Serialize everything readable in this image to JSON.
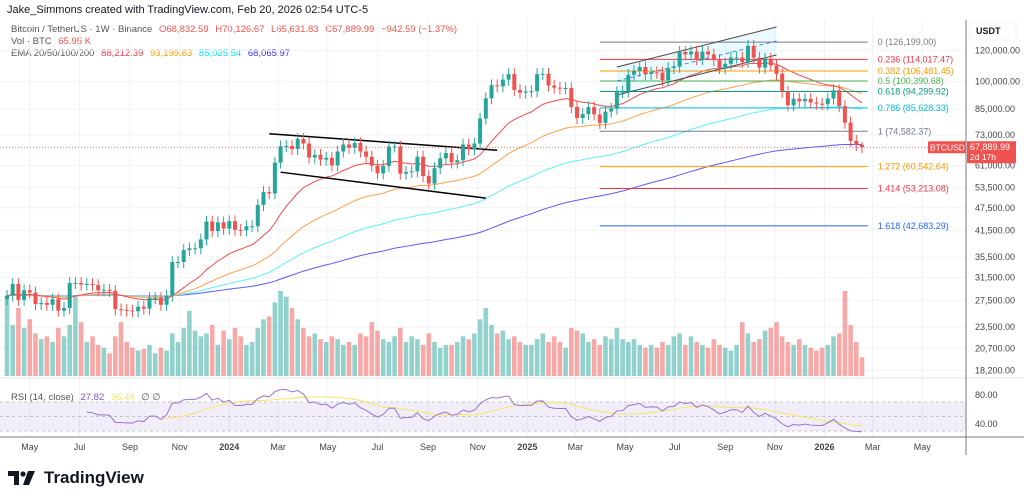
{
  "credit": "Jake_Simmons created with TradingView.com, Feb 20, 2026 02:54 UTC-5",
  "legend": {
    "symbol": "Bitcoin / TetherUS · 1W · Binance",
    "open": "O68,832.59",
    "high": "H70,126.67",
    "low": "L65,631.83",
    "close": "C67,889.99",
    "change": "−942.59 (−1.37%)",
    "vol_label": "Vol · BTC",
    "vol_value": "65.95 K",
    "ema_label": "EMA 20/50/100/200",
    "ema_values": [
      "88,212.39",
      "93,199.83",
      "85,025.54",
      "68,065.97"
    ],
    "rsi_label": "RSI (14, close)",
    "rsi_value": "27.82",
    "rsi_ma_value": "36.44",
    "rsi_extra": "∅ ∅"
  },
  "colors": {
    "up": "#26a69a",
    "down": "#ef5350",
    "ema20": "#f44a4a",
    "ema50": "#ffa04d",
    "ema100": "#5ef0fa",
    "ema200": "#5c5cf5",
    "rsi": "#9575cd",
    "rsi_ma": "#f5e663"
  },
  "price_axis": {
    "unit": "USDT",
    "ticks": [
      "120,000.00",
      "100,000.00",
      "85,000.00",
      "73,000.00",
      "61,000.00",
      "53,500.00",
      "47,500.00",
      "41,500.00",
      "35,500.00",
      "31,500.00",
      "27,500.00",
      "23,500.00",
      "20,700.00",
      "18,200.00"
    ]
  },
  "rsi_axis": {
    "ticks": [
      "80.00",
      "40.00"
    ]
  },
  "time_axis": [
    {
      "label": "May",
      "date": "2023-05-01",
      "bold": false
    },
    {
      "label": "Jul",
      "date": "2023-07-01",
      "bold": false
    },
    {
      "label": "Sep",
      "date": "2023-09-01",
      "bold": false
    },
    {
      "label": "Nov",
      "date": "2023-11-01",
      "bold": false
    },
    {
      "label": "2024",
      "date": "2024-01-01",
      "bold": true
    },
    {
      "label": "Mar",
      "date": "2024-03-01",
      "bold": false
    },
    {
      "label": "May",
      "date": "2024-05-01",
      "bold": false
    },
    {
      "label": "Jul",
      "date": "2024-07-01",
      "bold": false
    },
    {
      "label": "Sep",
      "date": "2024-09-01",
      "bold": false
    },
    {
      "label": "Nov",
      "date": "2024-11-01",
      "bold": false
    },
    {
      "label": "2025",
      "date": "2025-01-01",
      "bold": true
    },
    {
      "label": "Mar",
      "date": "2025-03-01",
      "bold": false
    },
    {
      "label": "May",
      "date": "2025-05-01",
      "bold": false
    },
    {
      "label": "Jul",
      "date": "2025-07-01",
      "bold": false
    },
    {
      "label": "Sep",
      "date": "2025-09-01",
      "bold": false
    },
    {
      "label": "Nov",
      "date": "2025-11-01",
      "bold": false
    },
    {
      "label": "2026",
      "date": "2026-01-01",
      "bold": true
    },
    {
      "label": "Mar",
      "date": "2026-03-01",
      "bold": false
    },
    {
      "label": "May",
      "date": "2026-05-01",
      "bold": false
    }
  ],
  "current_price": {
    "symbol": "BTCUSDT",
    "price": "67,889.99",
    "countdown": "2d 17h",
    "value": 67889.99
  },
  "fib_levels": [
    {
      "label": "0 (126,199.00)",
      "price": 126199.0,
      "color": "#787b86"
    },
    {
      "label": "0.236 (114,017.47)",
      "price": 114017.47,
      "color": "#f23645"
    },
    {
      "label": "0.382 (106,481.45)",
      "price": 106481.45,
      "color": "#ff9800"
    },
    {
      "label": "0.5 (100,390.68)",
      "price": 100390.68,
      "color": "#4caf50"
    },
    {
      "label": "0.618 (94,299.92)",
      "price": 94299.92,
      "color": "#089981"
    },
    {
      "label": "0.786 (85,628.33)",
      "price": 85628.33,
      "color": "#00bcd4"
    },
    {
      "label": "1 (74,582.37)",
      "price": 74582.37,
      "color": "#787b86"
    },
    {
      "label": "1.272 (60,542.64)",
      "price": 60542.64,
      "color": "#ff9800"
    },
    {
      "label": "1.414 (53,213.08)",
      "price": 53213.08,
      "color": "#f23645"
    },
    {
      "label": "1.618 (42,683.29)",
      "price": 42683.29,
      "color": "#2962ff"
    }
  ],
  "fib_range": {
    "from": "2025-03-31",
    "to": "2026-02-23"
  },
  "trendlines": {
    "descending_upper": [
      [
        "2024-02-19",
        73500
      ],
      [
        "2024-11-25",
        66700
      ]
    ],
    "descending_lower": [
      [
        "2024-03-04",
        58600
      ],
      [
        "2024-11-11",
        50300
      ]
    ],
    "rising_upper": [
      [
        "2025-04-21",
        109000
      ],
      [
        "2025-11-03",
        138000
      ]
    ],
    "rising_lower": [
      [
        "2025-04-21",
        92400
      ],
      [
        "2025-11-03",
        117000
      ]
    ]
  },
  "brand": "TradingView",
  "chart_data": {
    "type": "candlestick",
    "interval": "1W",
    "first_week": "2023-04-03",
    "scale": "log",
    "last_candle": {
      "open": 68832.59,
      "high": 70126.67,
      "low": 65631.83,
      "close": 67889.99
    },
    "closes_k": [
      28.3,
      30.3,
      27.6,
      29.2,
      28.8,
      26.9,
      27.1,
      26.8,
      27.7,
      25.9,
      26.3,
      30.5,
      30.5,
      30.2,
      30.3,
      30.1,
      29.2,
      29.3,
      29.1,
      26.1,
      26.0,
      25.9,
      25.8,
      26.5,
      26.2,
      27.9,
      27.9,
      26.8,
      28.3,
      34.5,
      34.5,
      37.0,
      37.4,
      37.4,
      39.4,
      43.8,
      41.4,
      43.6,
      42.0,
      43.9,
      41.7,
      41.6,
      42.6,
      42.6,
      48.3,
      52.1,
      51.7,
      62.0,
      68.3,
      68.4,
      67.2,
      71.3,
      69.4,
      63.9,
      64.9,
      63.1,
      63.8,
      61.0,
      66.2,
      69.0,
      67.7,
      69.6,
      66.2,
      64.2,
      60.9,
      58.2,
      60.8,
      68.2,
      68.2,
      58.1,
      58.7,
      58.9,
      64.2,
      57.3,
      54.8,
      60.0,
      63.6,
      65.6,
      62.1,
      62.9,
      69.0,
      67.0,
      69.4,
      80.4,
      90.6,
      97.9,
      97.3,
      101.2,
      104.5,
      95.2,
      93.7,
      94.3,
      94.5,
      104.5,
      104.7,
      97.7,
      96.5,
      96.1,
      96.3,
      86.1,
      80.7,
      82.6,
      86.0,
      82.4,
      78.4,
      83.8,
      85.2,
      94.0,
      94.3,
      104.1,
      106.5,
      109.0,
      104.6,
      105.6,
      105.4,
      100.9,
      108.4,
      109.2,
      119.1,
      117.4,
      119.4,
      114.2,
      119.3,
      117.4,
      113.5,
      108.3,
      111.1,
      115.3,
      115.3,
      112.2,
      123.5,
      115.2,
      108.6,
      114.5,
      110.0,
      104.7,
      94.2,
      87.0,
      90.4,
      89.0,
      90.3,
      88.4,
      87.8,
      87.5,
      90.5,
      95.0,
      86.5,
      78.5,
      70.5,
      68.8,
      67.89
    ],
    "volumes_k": [
      280,
      180,
      240,
      170,
      200,
      150,
      130,
      140,
      120,
      170,
      140,
      180,
      280,
      190,
      120,
      140,
      110,
      100,
      80,
      140,
      190,
      120,
      100,
      90,
      95,
      110,
      80,
      100,
      90,
      150,
      120,
      170,
      230,
      160,
      140,
      150,
      180,
      110,
      160,
      130,
      170,
      140,
      110,
      120,
      170,
      200,
      210,
      260,
      300,
      280,
      240,
      200,
      170,
      140,
      150,
      130,
      120,
      140,
      130,
      110,
      120,
      110,
      150,
      140,
      190,
      160,
      130,
      120,
      140,
      170,
      120,
      140,
      130,
      110,
      150,
      120,
      100,
      110,
      110,
      120,
      140,
      130,
      150,
      200,
      240,
      180,
      150,
      160,
      130,
      140,
      120,
      110,
      110,
      130,
      150,
      120,
      140,
      120,
      100,
      170,
      160,
      150,
      120,
      130,
      110,
      140,
      130,
      170,
      130,
      120,
      130,
      110,
      100,
      110,
      100,
      120,
      110,
      140,
      150,
      110,
      140,
      120,
      110,
      100,
      130,
      110,
      100,
      90,
      110,
      190,
      150,
      120,
      130,
      160,
      170,
      190,
      140,
      120,
      110,
      130,
      110,
      100,
      90,
      100,
      110,
      140,
      150,
      300,
      180,
      120,
      65.95
    ],
    "indicators": [
      "EMA 20",
      "EMA 50",
      "EMA 100",
      "EMA 200",
      "RSI 14",
      "RSI MA 14"
    ],
    "rsi_levels": [
      70,
      50,
      30
    ]
  }
}
